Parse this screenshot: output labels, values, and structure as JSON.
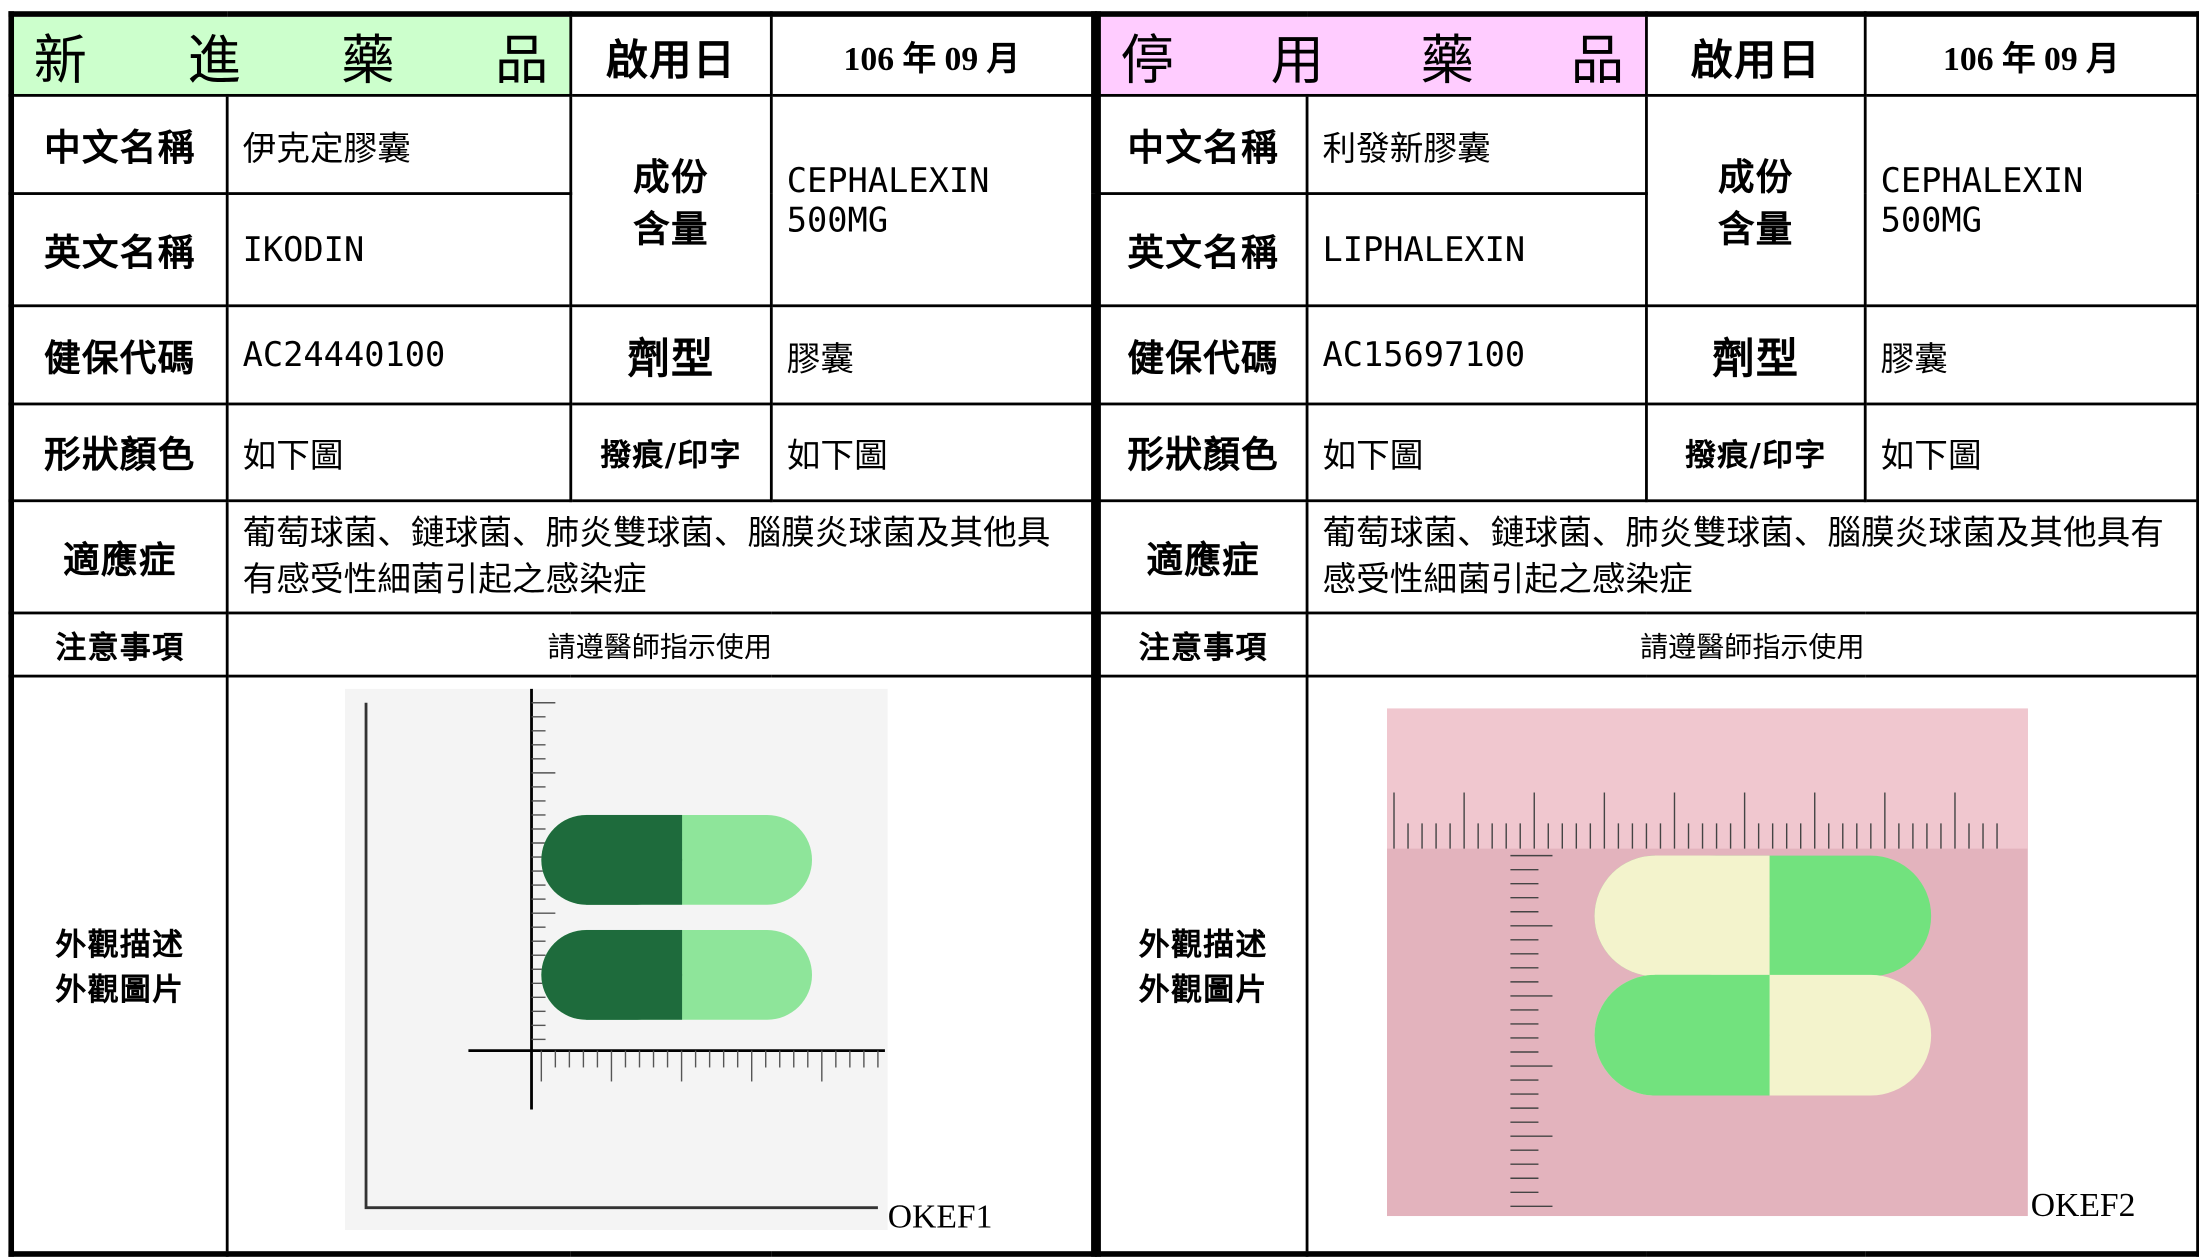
{
  "panels": [
    {
      "header": {
        "status": "新 進 藥 品",
        "start_label": "啟用日",
        "date": "106 年 09 月"
      },
      "chinese_name": {
        "label": "中文名稱",
        "value": "伊克定膠囊"
      },
      "english_name": {
        "label": "英文名稱",
        "value": "IKODIN"
      },
      "ingredient": {
        "label": [
          "成份",
          "含量"
        ],
        "value": "CEPHALEXIN 500MG"
      },
      "nhi_code": {
        "label": "健保代碼",
        "value": "AC24440100"
      },
      "dosage_form": {
        "label": "劑型",
        "value": "膠囊"
      },
      "shape_color": {
        "label": "形狀顏色",
        "value": "如下圖"
      },
      "marking": {
        "label": "撥痕/印字",
        "value": "如下圖"
      },
      "indication": {
        "label": "適應症",
        "value": "葡萄球菌、鏈球菌、肺炎雙球菌、腦膜炎球菌及其他具有感受性細菌引起之感染症"
      },
      "precautions": {
        "label": "注意事項",
        "value": "請遵醫師指示使用"
      },
      "appearance": {
        "label": [
          "外觀描述",
          "外觀圖片"
        ],
        "caption": "OKEF1"
      }
    },
    {
      "header": {
        "status": "停 用 藥 品",
        "start_label": "啟用日",
        "date": "106 年 09 月"
      },
      "chinese_name": {
        "label": "中文名稱",
        "value": "利發新膠囊"
      },
      "english_name": {
        "label": "英文名稱",
        "value": "LIPHALEXIN"
      },
      "ingredient": {
        "label": [
          "成份",
          "含量"
        ],
        "value": "CEPHALEXIN 500MG"
      },
      "nhi_code": {
        "label": "健保代碼",
        "value": "AC15697100"
      },
      "dosage_form": {
        "label": "劑型",
        "value": "膠囊"
      },
      "shape_color": {
        "label": "形狀顏色",
        "value": "如下圖"
      },
      "marking": {
        "label": "撥痕/印字",
        "value": "如下圖"
      },
      "indication": {
        "label": "適應症",
        "value": "葡萄球菌、鏈球菌、肺炎雙球菌、腦膜炎球菌及其他具有感受性細菌引起之感染症"
      },
      "precautions": {
        "label": "注意事項",
        "value": "請遵醫師指示使用"
      },
      "appearance": {
        "label": [
          "外觀描述",
          "外觀圖片"
        ],
        "caption": "OKEF2"
      }
    }
  ]
}
